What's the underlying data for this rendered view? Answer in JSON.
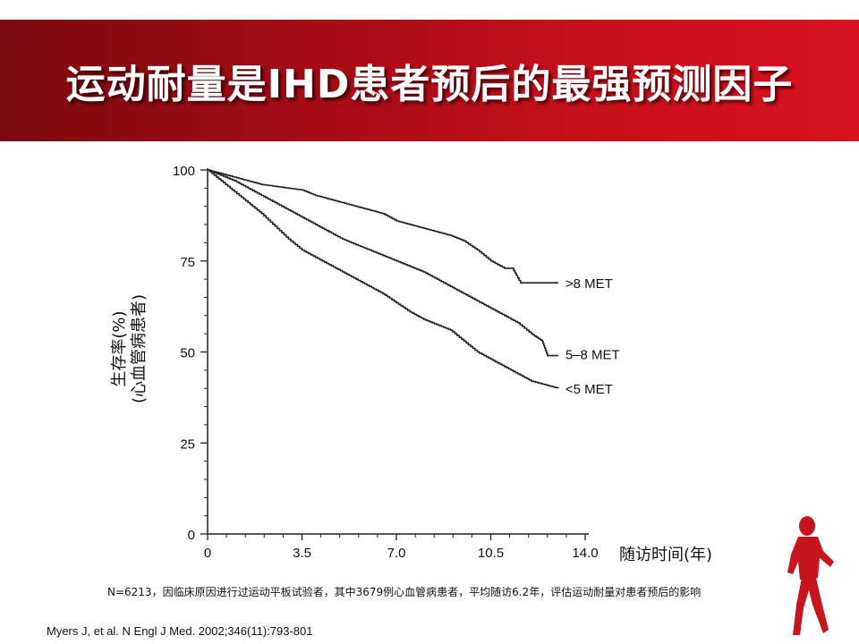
{
  "header": {
    "title": "运动耐量是IHD患者预后的最强预测因子"
  },
  "chart_data": {
    "type": "line",
    "title": "",
    "xlabel": "随访时间(年)",
    "ylabel": [
      "生存率(%)",
      "(心血管病患者)"
    ],
    "xlim": [
      0,
      14.0
    ],
    "ylim": [
      0,
      100
    ],
    "xticks": [
      "0",
      "3.5",
      "7.0",
      "10.5",
      "14.0"
    ],
    "yticks": [
      "0",
      "25",
      "50",
      "75",
      "100"
    ],
    "grid": false,
    "legend": "inline labels at line ends",
    "series": [
      {
        "name": ">8 MET",
        "x": [
          0,
          0.5,
          1,
          1.5,
          2,
          2.5,
          3,
          3.5,
          4,
          4.5,
          5,
          5.5,
          6,
          6.5,
          7,
          7.5,
          8,
          8.5,
          9,
          9.5,
          10,
          10.5,
          11,
          11.3,
          11.6,
          12,
          12.5,
          13
        ],
        "y": [
          100,
          99,
          98,
          97,
          96,
          95.5,
          95,
          94.5,
          93,
          92,
          91,
          90,
          89,
          88,
          86,
          85,
          84,
          83,
          82,
          80.5,
          78,
          75,
          73,
          73,
          69,
          69,
          69,
          69
        ]
      },
      {
        "name": "5–8 MET",
        "x": [
          0,
          0.5,
          1,
          1.5,
          2,
          2.5,
          3,
          3.5,
          4,
          4.5,
          5,
          5.5,
          6,
          6.5,
          7,
          7.5,
          8,
          8.5,
          9,
          9.5,
          10,
          10.5,
          11,
          11.5,
          12,
          12.4,
          12.6,
          13
        ],
        "y": [
          100,
          98.5,
          97,
          95,
          93,
          91,
          89,
          87,
          85,
          83,
          81,
          79.5,
          78,
          76.5,
          75,
          73.5,
          72,
          70,
          68,
          66,
          64,
          62,
          60,
          58,
          55,
          53,
          49,
          49
        ]
      },
      {
        "name": "<5 MET",
        "x": [
          0,
          0.5,
          1,
          1.5,
          2,
          2.5,
          3,
          3.5,
          4,
          4.5,
          5,
          5.5,
          6,
          6.5,
          7,
          7.5,
          8,
          8.5,
          9,
          9.5,
          10,
          10.5,
          11,
          11.5,
          12,
          12.5,
          13
        ],
        "y": [
          100,
          97,
          94,
          91,
          88,
          84.5,
          81,
          78,
          76,
          74,
          72,
          70,
          68,
          66,
          63.5,
          61,
          59,
          57.5,
          56,
          53,
          50,
          48,
          46,
          44,
          42,
          41,
          40
        ]
      }
    ]
  },
  "footnote": {
    "text": "N=6213，因临床原因进行过运动平板试验者，其中3679例心血管病患者，平均随访6.2年，评估运动耐量对患者预后的影响"
  },
  "reference": {
    "text": "Myers J, et al. N Engl J Med. 2002;346(11):793-801"
  },
  "colors": {
    "header_dark": "#7a0a0e",
    "header_light": "#d81220",
    "runner": "#c8141c",
    "curve": "#222222"
  },
  "icons": {
    "runner": "running-man-icon"
  }
}
